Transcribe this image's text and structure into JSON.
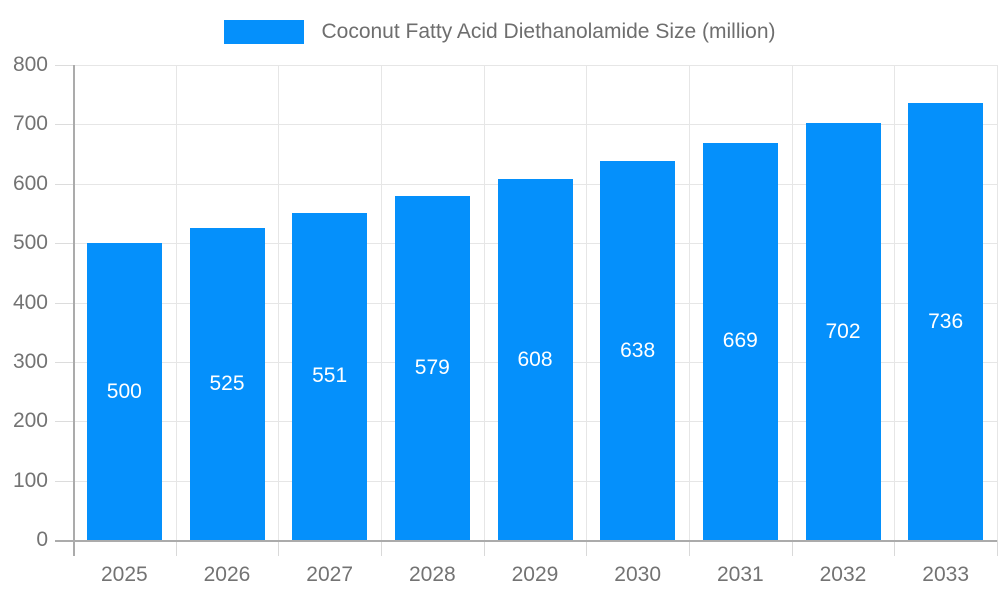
{
  "legend": {
    "label": "Coconut Fatty Acid Diethanolamide Size (million)"
  },
  "colors": {
    "bar": "#0590fb",
    "grid": "#e6e6e6",
    "axis": "#ababab",
    "tick": "#d9d9d9",
    "label_text": "#737373",
    "legend_text": "#6e6e6e",
    "value_text": "#ffffff",
    "background": "#ffffff"
  },
  "chart_data": {
    "type": "bar",
    "title": "Coconut Fatty Acid Diethanolamide Size (million)",
    "categories": [
      "2025",
      "2026",
      "2027",
      "2028",
      "2029",
      "2030",
      "2031",
      "2032",
      "2033"
    ],
    "values": [
      500,
      525,
      551,
      579,
      608,
      638,
      669,
      702,
      736
    ],
    "xlabel": "",
    "ylabel": "",
    "ylim": [
      0,
      800
    ],
    "yticks": [
      0,
      100,
      200,
      300,
      400,
      500,
      600,
      700,
      800
    ],
    "grid": true,
    "legend_position": "top",
    "bar_label_position": "inside-middle"
  }
}
